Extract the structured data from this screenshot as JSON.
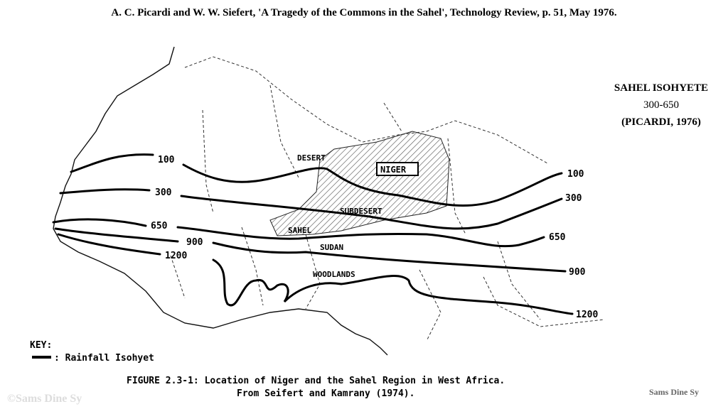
{
  "citation": "A. C. Picardi and W. W. Siefert, 'A Tragedy of the Commons in the Sahel', Technology Review, p. 51, May 1976.",
  "side_note": [
    "SAHEL ISOHYETE",
    "300-650",
    "(PICARDI, 1976)"
  ],
  "regions": [
    "DESERT",
    "NIGER",
    "SUBDESERT",
    "SAHEL",
    "SUDAN",
    "WOODLANDS"
  ],
  "isohyets": [
    {
      "left": "100",
      "right": "100"
    },
    {
      "left": "300",
      "right": "300"
    },
    {
      "left": "650",
      "right": "650"
    },
    {
      "left": "900",
      "right": "900"
    },
    {
      "left": "1200",
      "right": "1200"
    }
  ],
  "key": {
    "title": "KEY:",
    "item": ": Rainfall Isohyet"
  },
  "caption": [
    "FIGURE 2.3-1:  Location of Niger and the Sahel Region in West Africa.",
    "From Seifert and Kamrany (1974)."
  ],
  "watermarks": [
    "©Sams Dine Sy",
    "Sams Dine Sy"
  ]
}
